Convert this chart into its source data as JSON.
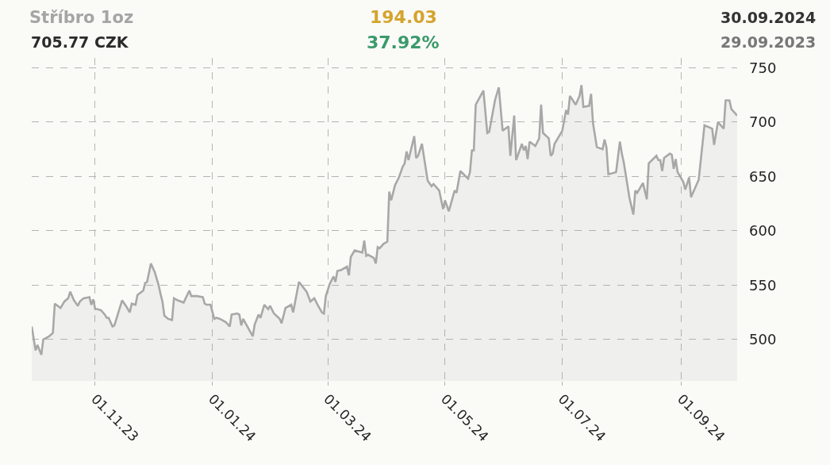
{
  "chart_data": {
    "type": "area",
    "title": "Stříbro 1oz",
    "subtitle": "705.77 CZK",
    "annotations": [
      "194.03",
      "37.92%",
      "30.09.2024",
      "29.09.2023"
    ],
    "x": [
      "2023-09-29",
      "2023-10-01",
      "2023-10-02",
      "2023-10-04",
      "2023-10-05",
      "2023-10-08",
      "2023-10-10",
      "2023-10-11",
      "2023-10-14",
      "2023-10-16",
      "2023-10-18",
      "2023-10-19",
      "2023-10-21",
      "2023-10-23",
      "2023-10-24",
      "2023-10-26",
      "2023-10-29",
      "2023-10-30",
      "2023-10-31",
      "2023-11-01",
      "2023-11-02",
      "2023-11-04",
      "2023-11-06",
      "2023-11-07",
      "2023-11-08",
      "2023-11-10",
      "2023-11-11",
      "2023-11-15",
      "2023-11-17",
      "2023-11-19",
      "2023-11-20",
      "2023-11-22",
      "2023-11-23",
      "2023-11-26",
      "2023-11-27",
      "2023-11-28",
      "2023-11-30",
      "2023-12-02",
      "2023-12-04",
      "2023-12-05",
      "2023-12-06",
      "2023-12-07",
      "2023-12-09",
      "2023-12-11",
      "2023-12-12",
      "2023-12-14",
      "2023-12-17",
      "2023-12-20",
      "2023-12-21",
      "2023-12-24",
      "2023-12-27",
      "2023-12-28",
      "2023-12-29",
      "2023-12-31",
      "2024-01-02",
      "2024-01-03",
      "2024-01-05",
      "2024-01-08",
      "2024-01-10",
      "2024-01-11",
      "2024-01-14",
      "2024-01-15",
      "2024-01-16",
      "2024-01-17",
      "2024-01-22",
      "2024-01-23",
      "2024-01-25",
      "2024-01-26",
      "2024-01-28",
      "2024-01-30",
      "2024-01-31",
      "2024-02-02",
      "2024-02-05",
      "2024-02-06",
      "2024-02-08",
      "2024-02-11",
      "2024-02-12",
      "2024-02-15",
      "2024-02-19",
      "2024-02-21",
      "2024-02-23",
      "2024-02-25",
      "2024-02-27",
      "2024-02-28",
      "2024-02-29",
      "2024-03-02",
      "2024-03-04",
      "2024-03-05",
      "2024-03-06",
      "2024-03-08",
      "2024-03-11",
      "2024-03-12",
      "2024-03-13",
      "2024-03-15",
      "2024-03-19",
      "2024-03-20",
      "2024-03-21",
      "2024-03-22",
      "2024-03-25",
      "2024-03-26",
      "2024-03-27",
      "2024-03-28",
      "2024-03-30",
      "2024-04-01",
      "2024-04-02",
      "2024-04-03",
      "2024-04-05",
      "2024-04-07",
      "2024-04-09",
      "2024-04-10",
      "2024-04-11",
      "2024-04-12",
      "2024-04-15",
      "2024-04-16",
      "2024-04-17",
      "2024-04-19",
      "2024-04-22",
      "2024-04-24",
      "2024-04-25",
      "2024-04-28",
      "2024-04-30",
      "2024-05-01",
      "2024-05-03",
      "2024-05-06",
      "2024-05-07",
      "2024-05-09",
      "2024-05-13",
      "2024-05-14",
      "2024-05-15",
      "2024-05-16",
      "2024-05-17",
      "2024-05-21",
      "2024-05-23",
      "2024-05-24",
      "2024-05-27",
      "2024-05-29",
      "2024-05-31",
      "2024-06-03",
      "2024-06-04",
      "2024-06-06",
      "2024-06-07",
      "2024-06-10",
      "2024-06-11",
      "2024-06-12",
      "2024-06-13",
      "2024-06-14",
      "2024-06-17",
      "2024-06-19",
      "2024-06-20",
      "2024-06-21",
      "2024-06-24",
      "2024-06-25",
      "2024-06-26",
      "2024-06-27",
      "2024-07-01",
      "2024-07-03",
      "2024-07-04",
      "2024-07-05",
      "2024-07-08",
      "2024-07-10",
      "2024-07-11",
      "2024-07-12",
      "2024-07-15",
      "2024-07-16",
      "2024-07-17",
      "2024-07-19",
      "2024-07-22",
      "2024-07-23",
      "2024-07-24",
      "2024-07-25",
      "2024-07-29",
      "2024-07-31",
      "2024-08-01",
      "2024-08-02",
      "2024-08-05",
      "2024-08-07",
      "2024-08-08",
      "2024-08-09",
      "2024-08-12",
      "2024-08-14",
      "2024-08-15",
      "2024-08-19",
      "2024-08-20",
      "2024-08-21",
      "2024-08-22",
      "2024-08-23",
      "2024-08-26",
      "2024-08-27",
      "2024-08-28",
      "2024-08-29",
      "2024-08-30",
      "2024-09-02",
      "2024-09-03",
      "2024-09-05",
      "2024-09-06",
      "2024-09-10",
      "2024-09-13",
      "2024-09-17",
      "2024-09-18",
      "2024-09-20",
      "2024-09-23",
      "2024-09-24",
      "2024-09-26",
      "2024-09-27",
      "2024-09-30"
    ],
    "series": [
      {
        "color": "#a8a8a8",
        "values": [
          512,
          490,
          495,
          486,
          500,
          503,
          506,
          533,
          529,
          535,
          538,
          544,
          536,
          531,
          535,
          538,
          539,
          532,
          537,
          528,
          528,
          527,
          523,
          520,
          520,
          512,
          513,
          536,
          531,
          525,
          533,
          532,
          541,
          545,
          552,
          553,
          570,
          562,
          550,
          542,
          535,
          522,
          519,
          518,
          538,
          536,
          534,
          545,
          540,
          540,
          539,
          533,
          532,
          532,
          519,
          520,
          519,
          516,
          512,
          523,
          524,
          523,
          513,
          519,
          503,
          514,
          523,
          520,
          532,
          528,
          531,
          524,
          519,
          515,
          529,
          532,
          525,
          553,
          544,
          535,
          538,
          531,
          525,
          524,
          540,
          551,
          558,
          553,
          563,
          564,
          567,
          559,
          576,
          582,
          580,
          591,
          577,
          578,
          575,
          570,
          585,
          584,
          588,
          590,
          636,
          628,
          642,
          649,
          659,
          662,
          673,
          665,
          687,
          667,
          669,
          680,
          646,
          641,
          643,
          637,
          620,
          628,
          618,
          637,
          635,
          655,
          648,
          654,
          674,
          674,
          716,
          729,
          690,
          691,
          720,
          732,
          692,
          696,
          669,
          706,
          665,
          680,
          674,
          678,
          666,
          682,
          678,
          685,
          716,
          690,
          685,
          669,
          671,
          680,
          692,
          711,
          707,
          724,
          716,
          724,
          734,
          714,
          715,
          726,
          699,
          677,
          675,
          684,
          677,
          652,
          654,
          682,
          671,
          663,
          630,
          615,
          637,
          635,
          644,
          629,
          662,
          669,
          665,
          665,
          655,
          667,
          671,
          670,
          657,
          666,
          654,
          645,
          638,
          649,
          631,
          647,
          697,
          694,
          679,
          700,
          694,
          720,
          720,
          712,
          706
        ]
      }
    ],
    "xlim": [
      "2023-09-29",
      "2024-09-30"
    ],
    "xticks": [
      {
        "value": "2023-11-01",
        "label": "01.11.23"
      },
      {
        "value": "2024-01-01",
        "label": "01.01.24"
      },
      {
        "value": "2024-03-01",
        "label": "01.03.24"
      },
      {
        "value": "2024-05-01",
        "label": "01.05.24"
      },
      {
        "value": "2024-07-01",
        "label": "01.07.24"
      },
      {
        "value": "2024-09-01",
        "label": "01.09.24"
      }
    ],
    "ylim": [
      462,
      759
    ],
    "yticks": [
      500,
      550,
      600,
      650,
      700,
      750
    ],
    "grid": true
  }
}
